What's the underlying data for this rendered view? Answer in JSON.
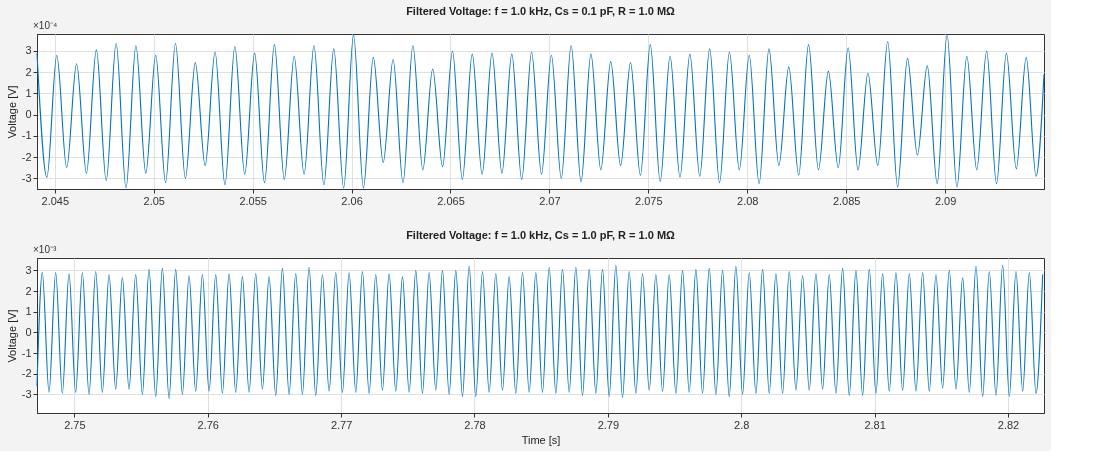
{
  "chart_data": [
    {
      "type": "line",
      "title": "Filtered Voltage: f = 1.0 kHz, Cs = 0.1 pF, R = 1.0 MΩ",
      "ylabel": "Voltage [V]",
      "annotations": [
        "×10⁻⁴"
      ],
      "grid": true,
      "xlim": [
        2.0441,
        2.095
      ],
      "ylim": [
        -3.5,
        3.8
      ],
      "xticks": [
        2.045,
        2.05,
        2.055,
        2.06,
        2.065,
        2.07,
        2.075,
        2.08,
        2.085,
        2.09
      ],
      "yticks": [
        -3,
        -2,
        -1,
        0,
        1,
        2,
        3
      ],
      "x": [
        2.0441,
        2.0446,
        2.0451,
        2.0456,
        2.0461,
        2.0466,
        2.0471,
        2.0476,
        2.0481,
        2.0486,
        2.0491,
        2.0496,
        2.0501,
        2.0506,
        2.0511,
        2.0516,
        2.0521,
        2.0526,
        2.0531,
        2.0536,
        2.0541,
        2.0546,
        2.0551,
        2.0556,
        2.0561,
        2.0566,
        2.0571,
        2.0576,
        2.0581,
        2.0586,
        2.0591,
        2.0596,
        2.0601,
        2.0606,
        2.0611,
        2.0616,
        2.0621,
        2.0626,
        2.0631,
        2.0636,
        2.0641,
        2.0646,
        2.0651,
        2.0656,
        2.0661,
        2.0666,
        2.0671,
        2.0676,
        2.0681,
        2.0686,
        2.0691,
        2.0696,
        2.0701,
        2.0706,
        2.0711,
        2.0716,
        2.0721,
        2.0726,
        2.0731,
        2.0736,
        2.0741,
        2.0746,
        2.0751,
        2.0756,
        2.0761,
        2.0766,
        2.0771,
        2.0776,
        2.0781,
        2.0786,
        2.0791,
        2.0796,
        2.0801,
        2.0806,
        2.0811,
        2.0816,
        2.0821,
        2.0826,
        2.0831,
        2.0836,
        2.0841,
        2.0846,
        2.0851,
        2.0856,
        2.0861,
        2.0866,
        2.0871,
        2.0876,
        2.0881,
        2.0886,
        2.0891,
        2.0896,
        2.0901,
        2.0906,
        2.0911,
        2.0916,
        2.0921,
        2.0926,
        2.0931,
        2.0936,
        2.0941,
        2.0946,
        2.095
      ],
      "series": [
        {
          "color": "#0072bd",
          "values": [
            2.9,
            -2.95,
            2.8,
            -2.5,
            2.4,
            -2.75,
            3.05,
            -3.1,
            3.35,
            -3.45,
            3.25,
            -2.75,
            2.8,
            -3.2,
            3.35,
            -3.0,
            2.45,
            -2.4,
            2.95,
            -3.3,
            3.2,
            -2.8,
            2.9,
            -3.2,
            3.3,
            -3.05,
            2.75,
            -2.8,
            3.25,
            -3.3,
            3.1,
            -3.45,
            3.75,
            -3.45,
            2.7,
            -2.25,
            2.6,
            -3.2,
            3.25,
            -2.6,
            2.15,
            -2.45,
            3.0,
            -3.05,
            2.85,
            -2.8,
            2.9,
            -2.75,
            2.85,
            -3.05,
            2.95,
            -2.8,
            2.8,
            -3.0,
            3.25,
            -3.15,
            2.85,
            -2.6,
            2.5,
            -2.4,
            2.45,
            -2.85,
            3.3,
            -3.15,
            2.75,
            -2.95,
            2.85,
            -2.9,
            3.1,
            -3.2,
            2.95,
            -2.6,
            2.8,
            -3.25,
            3.1,
            -2.4,
            2.25,
            -2.85,
            3.3,
            -2.6,
            2.05,
            -2.5,
            3.15,
            -2.6,
            1.95,
            -2.4,
            3.45,
            -3.4,
            2.65,
            -1.9,
            2.3,
            -3.25,
            3.75,
            -3.4,
            2.75,
            -2.6,
            3.0,
            -3.25,
            2.9,
            -2.55,
            2.7,
            -2.9,
            1.9
          ]
        }
      ]
    },
    {
      "type": "line",
      "title": "Filtered Voltage: f = 1.0 kHz, Cs = 1.0 pF, R = 1.0 MΩ",
      "xlabel": "Time [s]",
      "ylabel": "Voltage [V]",
      "annotations": [
        "×10⁻³"
      ],
      "grid": true,
      "xlim": [
        2.7472,
        2.8227
      ],
      "ylim": [
        -3.9,
        3.6
      ],
      "xticks": [
        2.75,
        2.76,
        2.77,
        2.78,
        2.79,
        2.8,
        2.81,
        2.82
      ],
      "yticks": [
        -3,
        -2,
        -1,
        0,
        1,
        2,
        3
      ],
      "x": [
        2.7472,
        2.7476,
        2.7481,
        2.7486,
        2.7491,
        2.7496,
        2.7501,
        2.7506,
        2.7511,
        2.7516,
        2.7521,
        2.7526,
        2.7531,
        2.7536,
        2.7541,
        2.7546,
        2.7551,
        2.7556,
        2.7561,
        2.7566,
        2.7571,
        2.7576,
        2.7581,
        2.7586,
        2.7591,
        2.7596,
        2.7601,
        2.7606,
        2.7611,
        2.7616,
        2.7621,
        2.7626,
        2.7631,
        2.7636,
        2.7641,
        2.7646,
        2.7651,
        2.7656,
        2.7661,
        2.7666,
        2.7671,
        2.7676,
        2.7681,
        2.7686,
        2.7691,
        2.7696,
        2.7701,
        2.7706,
        2.7711,
        2.7716,
        2.7721,
        2.7726,
        2.7731,
        2.7736,
        2.7741,
        2.7746,
        2.7751,
        2.7756,
        2.7761,
        2.7766,
        2.7771,
        2.7776,
        2.7781,
        2.7786,
        2.7791,
        2.7796,
        2.7801,
        2.7806,
        2.7811,
        2.7816,
        2.7821,
        2.7826,
        2.7831,
        2.7836,
        2.7841,
        2.7846,
        2.7851,
        2.7856,
        2.7861,
        2.7866,
        2.7871,
        2.7876,
        2.7881,
        2.7886,
        2.7891,
        2.7896,
        2.7901,
        2.7906,
        2.7911,
        2.7916,
        2.7921,
        2.7926,
        2.7931,
        2.7936,
        2.7941,
        2.7946,
        2.7951,
        2.7956,
        2.7961,
        2.7966,
        2.7971,
        2.7976,
        2.7981,
        2.7986,
        2.7991,
        2.7996,
        2.8001,
        2.8006,
        2.8011,
        2.8016,
        2.8021,
        2.8026,
        2.8031,
        2.8036,
        2.8041,
        2.8046,
        2.8051,
        2.8056,
        2.8061,
        2.8066,
        2.8071,
        2.8076,
        2.8081,
        2.8086,
        2.8091,
        2.8096,
        2.8101,
        2.8106,
        2.8111,
        2.8116,
        2.8121,
        2.8126,
        2.8131,
        2.8136,
        2.8141,
        2.8146,
        2.8151,
        2.8156,
        2.8161,
        2.8166,
        2.8171,
        2.8176,
        2.8181,
        2.8186,
        2.8191,
        2.8196,
        2.8201,
        2.8206,
        2.8211,
        2.8216,
        2.8221,
        2.8226
      ],
      "series": [
        {
          "color": "#0072bd",
          "values": [
            -2.6,
            2.9,
            -2.9,
            2.9,
            -2.95,
            2.85,
            -2.9,
            2.9,
            -3.0,
            2.95,
            -2.9,
            2.8,
            -2.75,
            2.65,
            -2.75,
            2.8,
            -3.0,
            3.05,
            -3.1,
            3.1,
            -3.2,
            3.05,
            -3.0,
            2.75,
            -2.85,
            2.8,
            -2.85,
            2.8,
            -2.95,
            2.85,
            -2.9,
            2.7,
            -2.9,
            2.85,
            -2.75,
            2.7,
            -3.05,
            3.1,
            -3.0,
            2.85,
            -3.0,
            3.15,
            -3.05,
            2.8,
            -2.85,
            2.9,
            -2.9,
            2.9,
            -2.9,
            2.95,
            -2.95,
            2.8,
            -2.8,
            2.85,
            -2.85,
            2.7,
            -2.9,
            3.0,
            -2.95,
            2.9,
            -2.8,
            3.0,
            -3.0,
            3.0,
            -3.1,
            3.2,
            -3.1,
            2.95,
            -2.9,
            2.85,
            -2.8,
            2.7,
            -2.95,
            2.9,
            -2.9,
            2.9,
            -2.9,
            3.15,
            -2.95,
            3.05,
            -2.9,
            3.15,
            -3.05,
            3.05,
            -2.95,
            3.05,
            -3.1,
            3.25,
            -3.15,
            2.95,
            -2.95,
            2.85,
            -2.8,
            2.8,
            -2.85,
            2.8,
            -2.95,
            3.0,
            -2.9,
            3.05,
            -2.95,
            3.1,
            -3.0,
            3.0,
            -3.1,
            3.2,
            -3.0,
            2.9,
            -2.95,
            3.05,
            -2.95,
            2.85,
            -2.95,
            2.95,
            -2.8,
            2.75,
            -2.8,
            2.85,
            -2.75,
            2.8,
            -2.95,
            3.1,
            -3.05,
            3.0,
            -3.05,
            3.05,
            -2.95,
            2.85,
            -2.85,
            2.9,
            -2.8,
            2.85,
            -2.85,
            2.9,
            -2.85,
            2.8,
            -2.7,
            3.0,
            -2.75,
            2.65,
            -2.9,
            3.2,
            -3.1,
            2.95,
            -3.05,
            3.25,
            -3.1,
            2.95,
            -2.85,
            2.9,
            -2.95,
            2.8
          ]
        }
      ]
    }
  ]
}
